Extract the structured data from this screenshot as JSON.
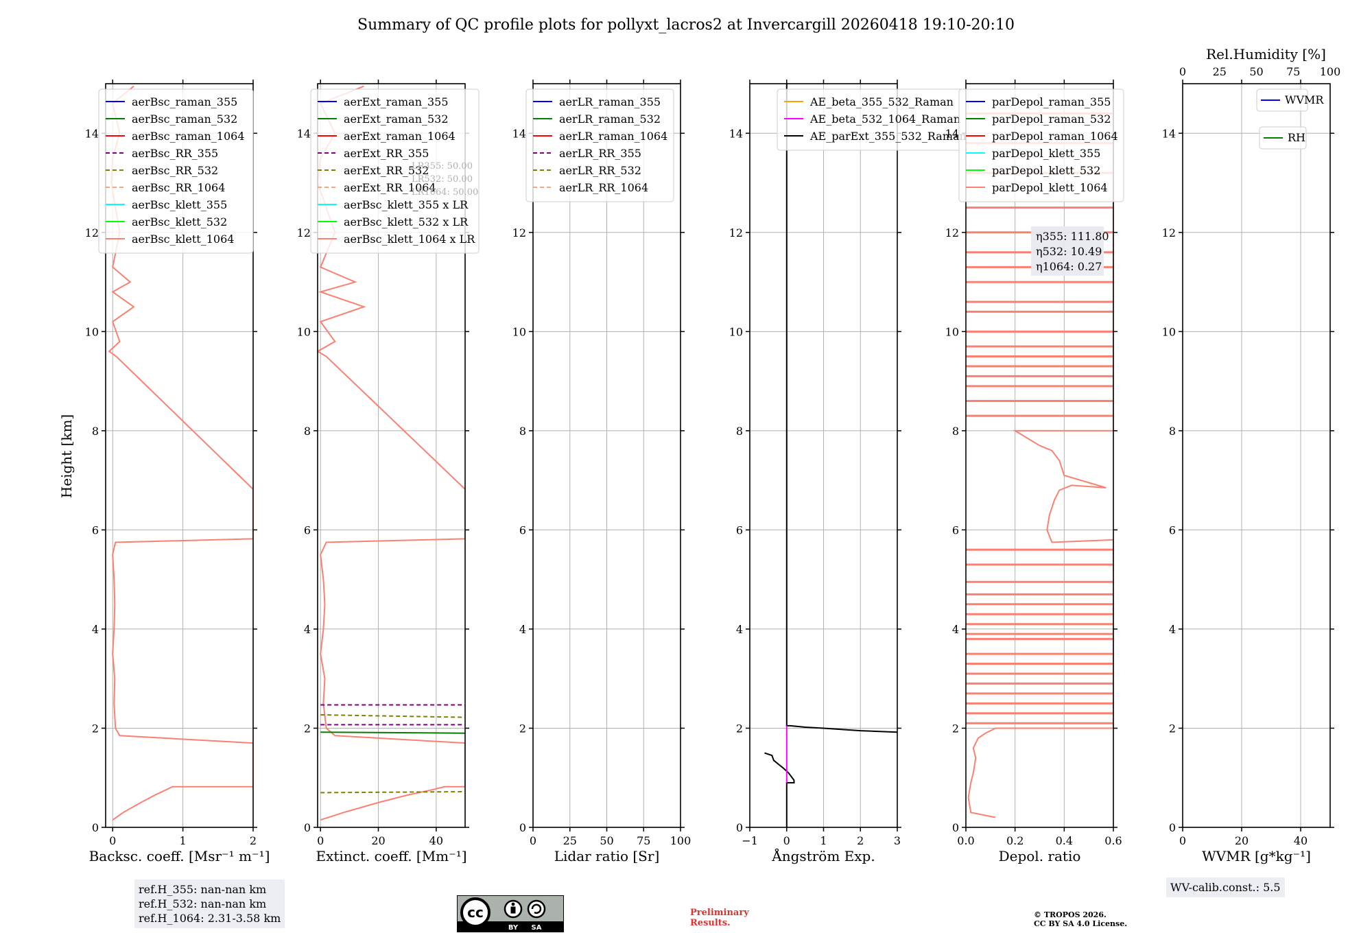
{
  "title": "Summary of QC profile plots for pollyxt_lacros2 at Invercargill 20260418 19:10-20:10",
  "colors": {
    "raman_355": "#0000ff",
    "raman_532": "#008000",
    "raman_1064": "#ff0000",
    "rr_355": "#800080",
    "rr_532": "#808000",
    "rr_1064": "#f4a582",
    "klett_355": "#00ffff",
    "klett_532": "#00ff00",
    "klett_1064": "#fa8072",
    "ae1": "#ffa500",
    "ae2": "#ff00ff",
    "ae3": "#000000",
    "rh": "#008000",
    "wvmr": "#0000ff"
  },
  "shared_ylabel": "Height [km]",
  "panels": [
    {
      "id": "bsc",
      "xlabel": "Backsc. coeff. [Msr⁻¹ m⁻¹]",
      "xlim": [
        -0.1,
        2
      ],
      "xticks": [
        "0",
        "1",
        "2"
      ],
      "xtickvals": [
        0,
        1,
        2
      ],
      "legend": [
        {
          "label": "aerBsc_raman_355",
          "color": "raman_355",
          "dash": false
        },
        {
          "label": "aerBsc_raman_532",
          "color": "raman_532",
          "dash": false
        },
        {
          "label": "aerBsc_raman_1064",
          "color": "raman_1064",
          "dash": false
        },
        {
          "label": "aerBsc_RR_355",
          "color": "rr_355",
          "dash": true
        },
        {
          "label": "aerBsc_RR_532",
          "color": "rr_532",
          "dash": true
        },
        {
          "label": "aerBsc_RR_1064",
          "color": "rr_1064",
          "dash": true
        },
        {
          "label": "aerBsc_klett_355",
          "color": "klett_355",
          "dash": false
        },
        {
          "label": "aerBsc_klett_532",
          "color": "klett_532",
          "dash": false
        },
        {
          "label": "aerBsc_klett_1064",
          "color": "klett_1064",
          "dash": false
        }
      ]
    },
    {
      "id": "ext",
      "xlabel": "Extinct. coeff. [Mm⁻¹]",
      "xlim": [
        -1,
        50
      ],
      "xticks": [
        "0",
        "20",
        "40"
      ],
      "xtickvals": [
        0,
        20,
        40
      ],
      "legend": [
        {
          "label": "aerExt_raman_355",
          "color": "raman_355",
          "dash": false
        },
        {
          "label": "aerExt_raman_532",
          "color": "raman_532",
          "dash": false
        },
        {
          "label": "aerExt_raman_1064",
          "color": "raman_1064",
          "dash": false
        },
        {
          "label": "aerExt_RR_355",
          "color": "rr_355",
          "dash": true
        },
        {
          "label": "aerExt_RR_532",
          "color": "rr_532",
          "dash": true
        },
        {
          "label": "aerExt_RR_1064",
          "color": "rr_1064",
          "dash": true
        },
        {
          "label": "aerBsc_klett_355 x LR",
          "color": "klett_355",
          "dash": false
        },
        {
          "label": "aerBsc_klett_532 x LR",
          "color": "klett_532",
          "dash": false
        },
        {
          "label": "aerBsc_klett_1064 x LR",
          "color": "klett_1064",
          "dash": false
        }
      ],
      "lr_note": [
        "LR355: 50.00",
        "LR532: 50.00",
        "LR1064: 50.00"
      ]
    },
    {
      "id": "lr",
      "xlabel": "Lidar ratio [Sr]",
      "xlim": [
        0,
        100
      ],
      "xticks": [
        "0",
        "25",
        "50",
        "75",
        "100"
      ],
      "xtickvals": [
        0,
        25,
        50,
        75,
        100
      ],
      "legend": [
        {
          "label": "aerLR_raman_355",
          "color": "raman_355",
          "dash": false
        },
        {
          "label": "aerLR_raman_532",
          "color": "raman_532",
          "dash": false
        },
        {
          "label": "aerLR_raman_1064",
          "color": "raman_1064",
          "dash": false
        },
        {
          "label": "aerLR_RR_355",
          "color": "rr_355",
          "dash": true
        },
        {
          "label": "aerLR_RR_532",
          "color": "rr_532",
          "dash": true
        },
        {
          "label": "aerLR_RR_1064",
          "color": "rr_1064",
          "dash": true
        }
      ]
    },
    {
      "id": "ae",
      "xlabel": "Ångström Exp.",
      "xlim": [
        -1,
        3
      ],
      "xticks": [
        "−1",
        "0",
        "1",
        "2",
        "3"
      ],
      "xtickvals": [
        -1,
        0,
        1,
        2,
        3
      ],
      "legend": [
        {
          "label": "AE_beta_355_532_Raman",
          "color": "ae1",
          "dash": false
        },
        {
          "label": "AE_beta_532_1064_Raman",
          "color": "ae2",
          "dash": false
        },
        {
          "label": "AE_parExt_355_532_Raman",
          "color": "ae3",
          "dash": false
        }
      ]
    },
    {
      "id": "depol",
      "xlabel": "Depol. ratio",
      "xlim": [
        0,
        0.6
      ],
      "xticks": [
        "0.0",
        "0.2",
        "0.4",
        "0.6"
      ],
      "xtickvals": [
        0,
        0.2,
        0.4,
        0.6
      ],
      "legend": [
        {
          "label": "parDepol_raman_355",
          "color": "raman_355",
          "dash": false
        },
        {
          "label": "parDepol_raman_532",
          "color": "raman_532",
          "dash": false
        },
        {
          "label": "parDepol_raman_1064",
          "color": "raman_1064",
          "dash": false
        },
        {
          "label": "parDepol_klett_355",
          "color": "klett_355",
          "dash": false
        },
        {
          "label": "parDepol_klett_532",
          "color": "klett_532",
          "dash": false
        },
        {
          "label": "parDepol_klett_1064",
          "color": "klett_1064",
          "dash": false
        }
      ],
      "eta": [
        "η355: 111.80",
        "η532: 10.49",
        "η1064: 0.27"
      ]
    },
    {
      "id": "wv",
      "xlabel": "WVMR [g*kg⁻¹]",
      "xlim": [
        0,
        50
      ],
      "xticks": [
        "0",
        "20",
        "40"
      ],
      "xtickvals": [
        0,
        20,
        40
      ],
      "toplabel": "Rel.Humidity [%]",
      "topticks": [
        "0",
        "25",
        "50",
        "75",
        "100"
      ],
      "toptickvals": [
        0,
        25,
        50,
        75,
        100
      ],
      "legend_wvmr": "WVMR",
      "legend_rh": "RH"
    }
  ],
  "chart_data": [
    {
      "type": "line",
      "panel": "bsc",
      "title": "",
      "xlabel": "Backsc. coeff. [Msr⁻¹ m⁻¹]",
      "ylabel": "Height [km]",
      "xlim": [
        -0.1,
        2
      ],
      "ylim": [
        0,
        15
      ],
      "series": [
        {
          "name": "aerBsc_klett_1064",
          "color": "klett_1064",
          "x": [
            0.0,
            0.15,
            0.4,
            0.6,
            0.75,
            0.85,
            2,
            2,
            0.1,
            0.04,
            0.02,
            0.03,
            0.0,
            0.02,
            0.03,
            0.02,
            0.0,
            0.04,
            2,
            2,
            0.05,
            -0.05,
            0.1,
            0.0,
            0.3,
            0.0,
            0.25,
            0.0,
            0.1,
            -0.02,
            0.0,
            0.1,
            0.0,
            0.3
          ],
          "y": [
            0.15,
            0.3,
            0.5,
            0.65,
            0.75,
            0.82,
            0.82,
            1.7,
            1.85,
            2.0,
            2.5,
            3.0,
            3.5,
            4.0,
            4.5,
            5.0,
            5.5,
            5.75,
            5.82,
            6.82,
            9.5,
            9.6,
            9.8,
            10.2,
            10.5,
            10.8,
            11.0,
            11.3,
            12.0,
            13.0,
            13.5,
            14.0,
            14.6,
            14.95
          ]
        }
      ]
    },
    {
      "type": "line",
      "panel": "ext",
      "title": "",
      "xlabel": "Extinct. coeff. [Mm⁻¹]",
      "ylabel": "Height [km]",
      "xlim": [
        -1,
        50
      ],
      "ylim": [
        0,
        15
      ],
      "series": [
        {
          "name": "aerBsc_klett_1064 x LR",
          "color": "klett_1064",
          "x": [
            0,
            8,
            20,
            30,
            38,
            43,
            50,
            50,
            5,
            2,
            1,
            1.5,
            0,
            1,
            1.5,
            1,
            0,
            2,
            50,
            50,
            2,
            -1,
            5,
            0,
            15,
            0,
            12,
            0,
            5,
            -1,
            0,
            5,
            0,
            15
          ],
          "y": [
            0.15,
            0.3,
            0.5,
            0.65,
            0.75,
            0.82,
            0.82,
            1.7,
            1.85,
            2.0,
            2.5,
            3.0,
            3.5,
            4.0,
            4.5,
            5.0,
            5.5,
            5.75,
            5.82,
            6.82,
            9.5,
            9.6,
            9.8,
            10.2,
            10.5,
            10.8,
            11.0,
            11.3,
            12.0,
            13.0,
            13.5,
            14.0,
            14.6,
            14.95
          ]
        },
        {
          "name": "aerExt_raman_532",
          "color": "raman_532",
          "x": [
            0,
            50
          ],
          "y": [
            1.92,
            1.9
          ]
        },
        {
          "name": "aerExt_RR_355",
          "color": "rr_355",
          "x": [
            0,
            50
          ],
          "y": [
            2.47,
            2.47
          ]
        },
        {
          "name": "aerExt_RR_355 (low)",
          "color": "rr_355",
          "x": [
            0,
            50
          ],
          "y": [
            2.07,
            2.07
          ]
        },
        {
          "name": "aerExt_RR_532",
          "color": "rr_532",
          "x": [
            0,
            50
          ],
          "y": [
            2.27,
            2.22
          ]
        },
        {
          "name": "aerExt_RR_532 (low)",
          "color": "rr_532",
          "x": [
            0,
            50
          ],
          "y": [
            0.7,
            0.72
          ]
        }
      ]
    },
    {
      "type": "line",
      "panel": "lr",
      "title": "",
      "xlabel": "Lidar ratio [Sr]",
      "ylabel": "",
      "xlim": [
        0,
        100
      ],
      "ylim": [
        0,
        15
      ],
      "series": []
    },
    {
      "type": "line",
      "panel": "ae",
      "title": "",
      "xlabel": "Ångström Exp.",
      "ylabel": "",
      "xlim": [
        -1,
        3
      ],
      "ylim": [
        0,
        15
      ],
      "series": [
        {
          "name": "AE_parExt_355_532_Raman",
          "color": "ae3",
          "x": [
            0,
            0,
            0.1,
            0.5,
            1,
            2,
            3
          ],
          "y": [
            15,
            2.05,
            2.05,
            2.02,
            2.0,
            1.95,
            1.92
          ]
        },
        {
          "name": "AE_parExt_355_532_Raman (low)",
          "color": "ae3",
          "x": [
            -0.6,
            -0.4,
            -0.35,
            -0.1,
            0.05,
            0.2,
            0.2,
            0.0,
            0.0
          ],
          "y": [
            1.5,
            1.45,
            1.35,
            1.2,
            1.1,
            0.95,
            0.9,
            0.9,
            0.0
          ]
        },
        {
          "name": "AE_beta_532_1064_Raman",
          "color": "ae2",
          "x": [
            0,
            0
          ],
          "y": [
            0.9,
            2.05
          ]
        }
      ]
    },
    {
      "type": "line",
      "panel": "depol",
      "title": "",
      "xlabel": "Depol. ratio",
      "ylabel": "",
      "xlim": [
        0,
        0.6
      ],
      "ylim": [
        0,
        15
      ],
      "series": [
        {
          "name": "parDepol_klett_1064",
          "color": "klett_1064",
          "x": [
            0.12,
            0.02,
            0.01,
            0.02,
            0.03,
            0.04,
            0.03,
            0.05,
            0.08,
            0.12,
            0.6,
            0.6,
            0.35,
            0.33,
            0.34,
            0.36,
            0.38,
            0.43,
            0.57,
            0.4,
            0.38,
            0.35,
            0.3,
            0.2,
            0.6,
            0.6
          ],
          "y": [
            0.2,
            0.3,
            0.6,
            0.9,
            1.1,
            1.4,
            1.6,
            1.8,
            1.9,
            2.0,
            2.0,
            5.8,
            5.75,
            6.0,
            6.3,
            6.6,
            6.8,
            6.9,
            6.85,
            7.1,
            7.4,
            7.6,
            7.7,
            8.0,
            8.0,
            14.95
          ]
        }
      ],
      "annotations": [
        "η355: 111.80",
        "η532: 10.49",
        "η1064: 0.27"
      ]
    },
    {
      "type": "line",
      "panel": "wv",
      "title": "",
      "xlabel": "WVMR [g*kg⁻¹]",
      "ylabel": "",
      "xlim": [
        0,
        50
      ],
      "ylim": [
        0,
        15
      ],
      "series": [],
      "top_axis": {
        "label": "Rel.Humidity [%]",
        "xlim": [
          0,
          100
        ]
      }
    }
  ],
  "yaxis": {
    "ylim": [
      0,
      15
    ],
    "ticks": [
      "0",
      "2",
      "4",
      "6",
      "8",
      "10",
      "12",
      "14"
    ],
    "tickvals": [
      0,
      2,
      4,
      6,
      8,
      10,
      12,
      14
    ]
  },
  "notes": {
    "ref_lines": [
      "ref.H_355: nan-nan km",
      "ref.H_532: nan-nan km",
      "ref.H_1064: 2.31-3.58 km"
    ],
    "wv_calib": "WV-calib.const.: 5.5",
    "preliminary": [
      "Preliminary",
      "Results."
    ],
    "copyright": [
      "© TROPOS 2026.",
      "CC BY SA 4.0 License."
    ],
    "cc_badge": {
      "top": "cc",
      "by": "BY",
      "sa": "SA"
    }
  }
}
